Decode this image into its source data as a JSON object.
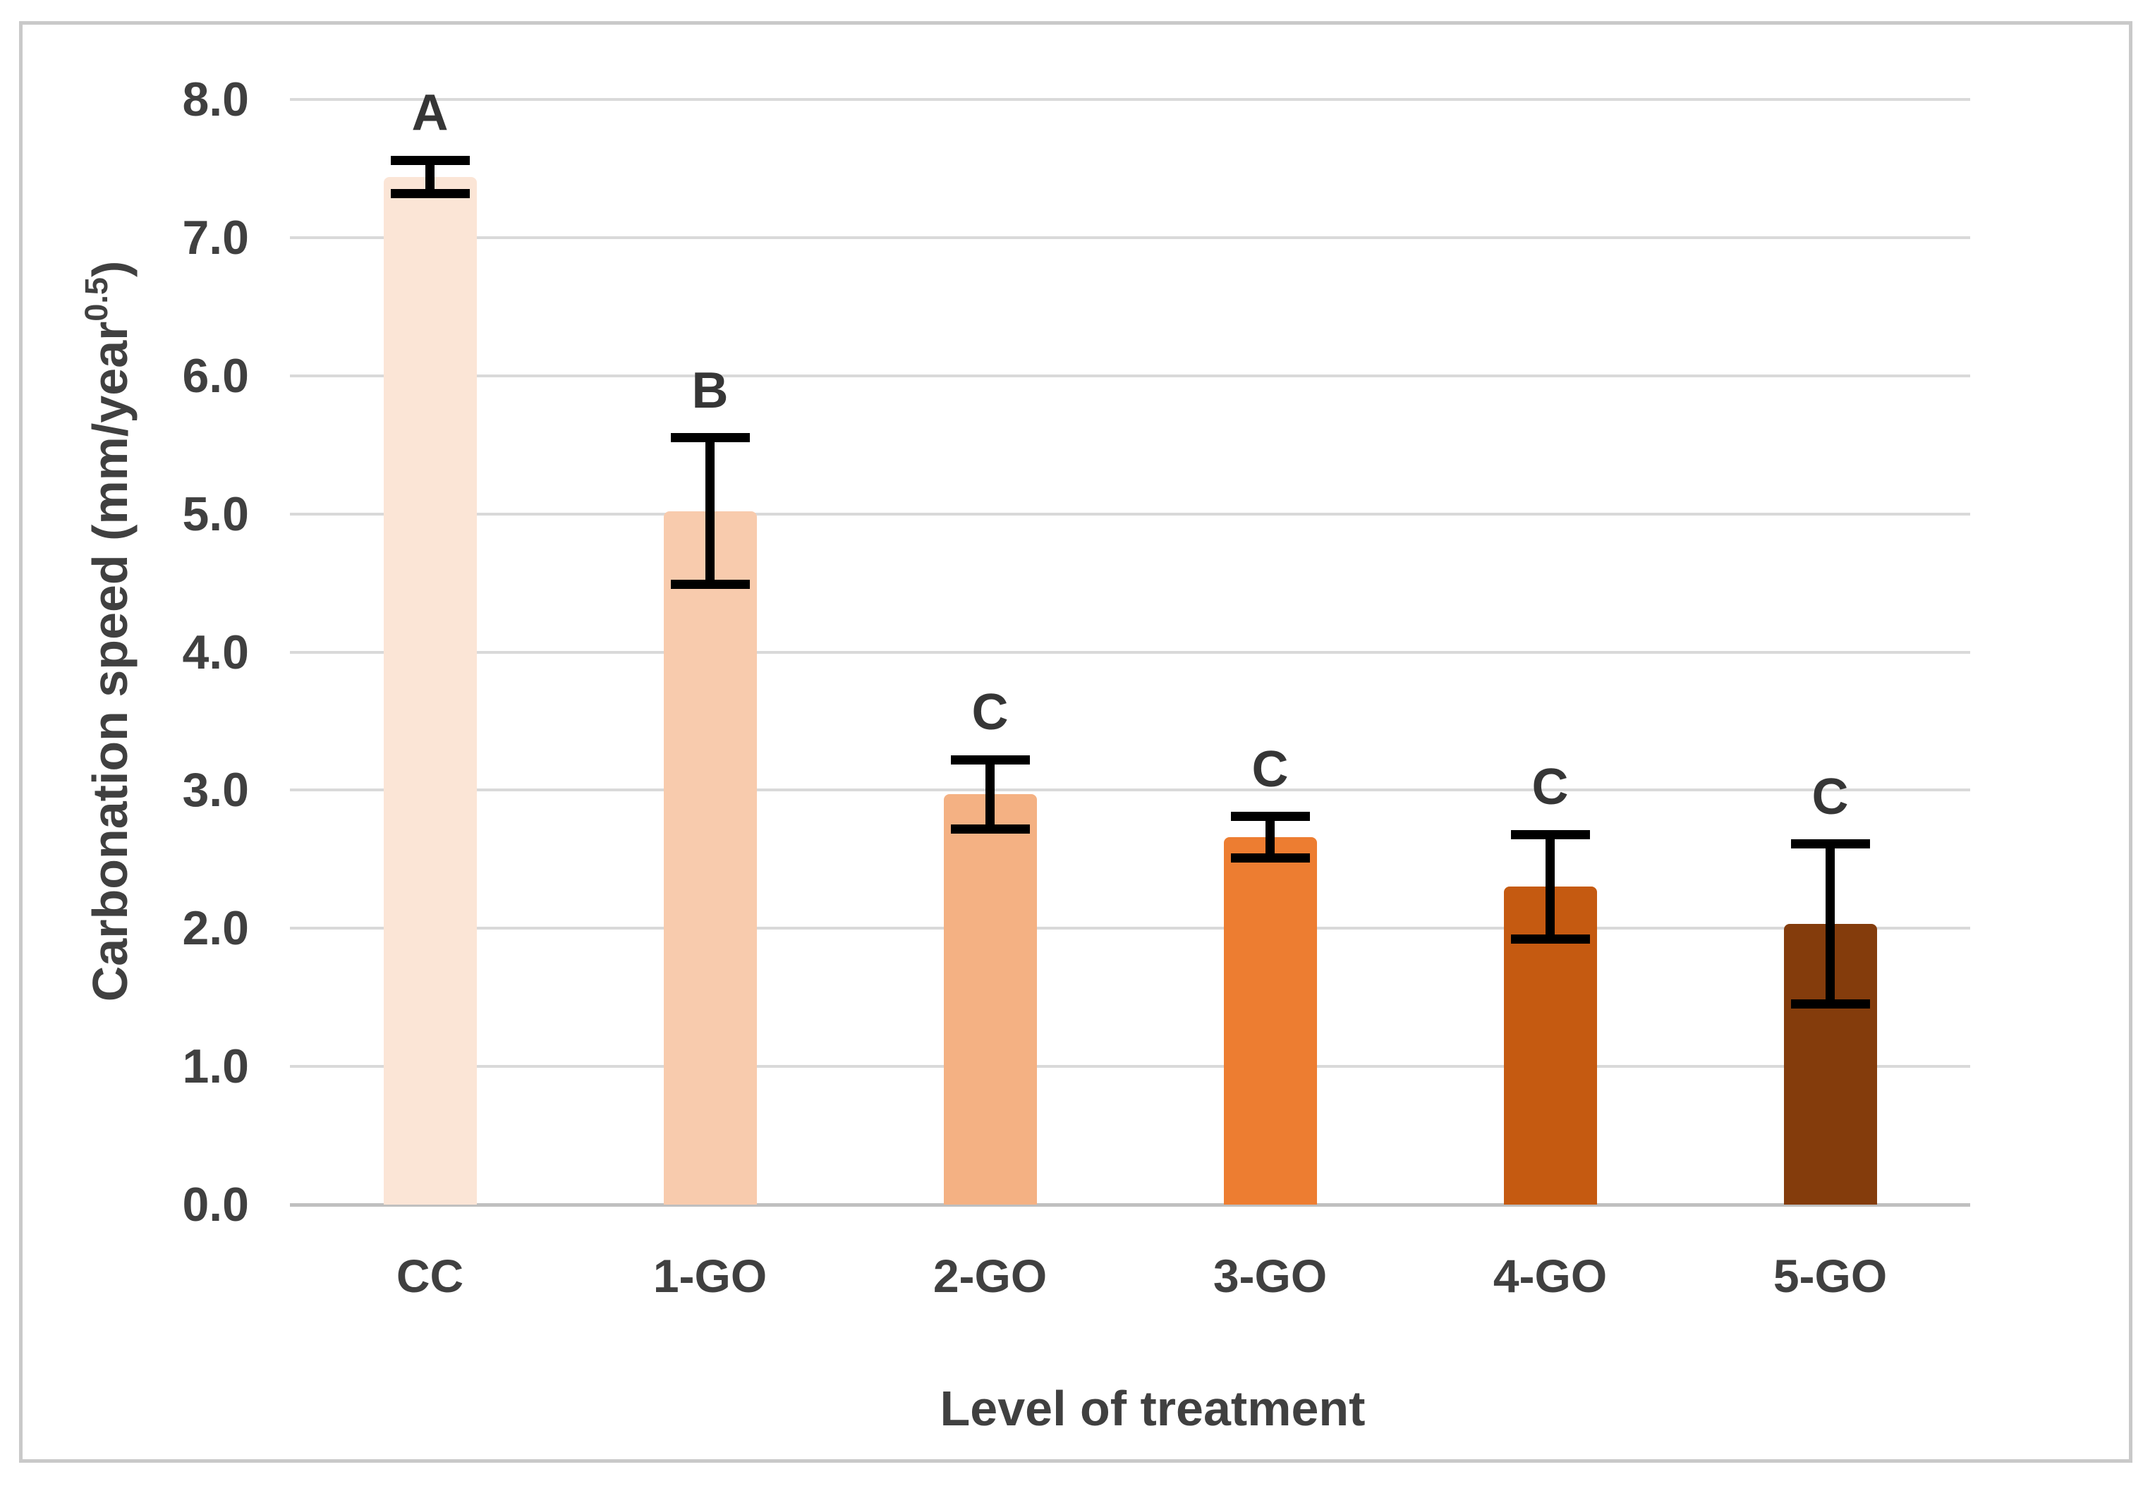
{
  "colors": {
    "background": "#ffffff",
    "frame_border": "#c9c9c9",
    "gridline": "#d9d9d9",
    "axis_line": "#bfbfbf",
    "text": "#404040",
    "letter_text": "#363636",
    "error_bar": "#000000"
  },
  "chart_data": {
    "type": "bar",
    "title": "",
    "categories": [
      "CC",
      "1-GO",
      "2-GO",
      "3-GO",
      "4-GO",
      "5-GO"
    ],
    "values": [
      7.44,
      5.02,
      2.97,
      2.66,
      2.3,
      2.03
    ],
    "error_bars": [
      0.12,
      0.53,
      0.25,
      0.15,
      0.38,
      0.58
    ],
    "significance_letters": [
      "A",
      "B",
      "C",
      "C",
      "C",
      "C"
    ],
    "bar_colors": [
      "#FBE5D6",
      "#F8CBAD",
      "#F4B183",
      "#ED7D31",
      "#C55A11",
      "#843C0C"
    ],
    "xlabel": "Level of treatment",
    "ylabel": "Carbonation speed (mm/year^0.5)",
    "ylabel_parts": {
      "main": "Carbonation speed (mm/year",
      "sup": "0.5",
      "end": ")"
    },
    "ylim": [
      0,
      8
    ],
    "ytick_labels": [
      "0.0",
      "1.0",
      "2.0",
      "3.0",
      "4.0",
      "5.0",
      "6.0",
      "7.0",
      "8.0"
    ],
    "grid": true,
    "legend": false
  }
}
